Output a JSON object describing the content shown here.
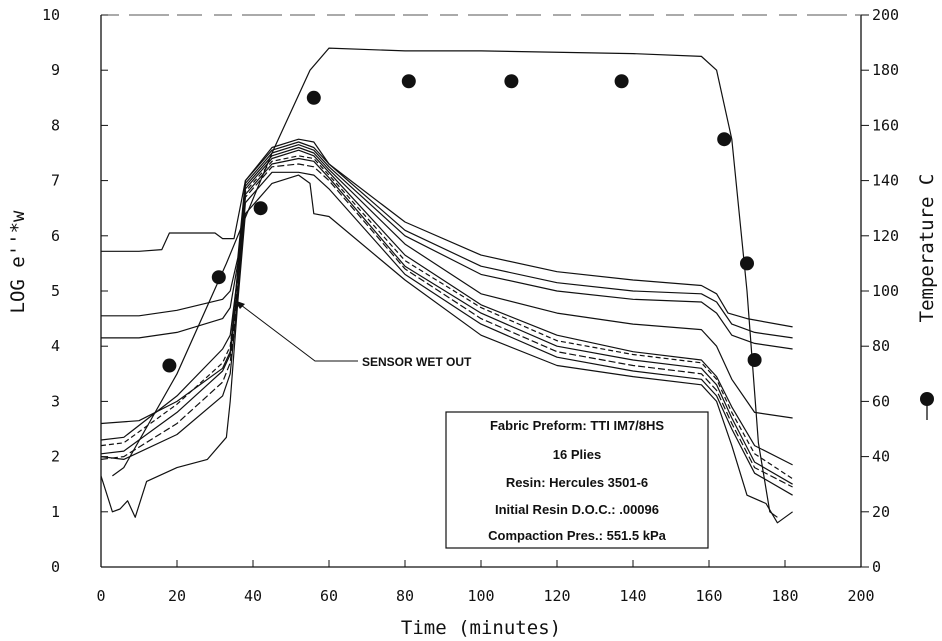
{
  "chart_data": {
    "type": "line",
    "xlabel": "Time (minutes)",
    "ylabel_left": "LOG e''*w",
    "ylabel_right": "Temperature C",
    "xlim": [
      0,
      200
    ],
    "ylim_left": [
      0,
      10
    ],
    "ylim_right": [
      0,
      200
    ],
    "x_ticks": [
      "0",
      "20",
      "40",
      "60",
      "80",
      "100",
      "120",
      "140",
      "160",
      "180",
      "200"
    ],
    "y_left_ticks": [
      "0",
      "1",
      "2",
      "3",
      "4",
      "5",
      "6",
      "7",
      "8",
      "9",
      "10"
    ],
    "y_right_ticks": [
      "0",
      "20",
      "40",
      "60",
      "80",
      "100",
      "120",
      "140",
      "160",
      "180",
      "200"
    ],
    "grid": false,
    "annotation": "SENSOR WET OUT",
    "info_box": [
      "Fabric Preform: TTI IM7/8HS",
      "16 Plies",
      "Resin: Hercules 3501-6",
      "Initial Resin D.O.C.: .00096",
      "Compaction Pres.: 551.5 kPa"
    ],
    "temperature": {
      "line": [
        [
          3,
          33
        ],
        [
          6,
          36
        ],
        [
          20,
          70
        ],
        [
          33,
          110
        ],
        [
          45,
          150
        ],
        [
          55,
          180
        ],
        [
          60,
          188
        ],
        [
          80,
          187
        ],
        [
          100,
          187
        ],
        [
          140,
          186
        ],
        [
          158,
          185
        ],
        [
          162,
          180
        ],
        [
          166,
          155
        ],
        [
          170,
          100
        ],
        [
          173,
          45
        ],
        [
          176,
          20
        ],
        [
          178,
          18
        ]
      ],
      "markers": [
        [
          18,
          73
        ],
        [
          31,
          105
        ],
        [
          42,
          130
        ],
        [
          56,
          170
        ],
        [
          81,
          176
        ],
        [
          108,
          176
        ],
        [
          137,
          176
        ],
        [
          164,
          155
        ],
        [
          170,
          110
        ],
        [
          172,
          75
        ]
      ]
    },
    "series": [
      {
        "values": [
          [
            0,
            5.72
          ],
          [
            10,
            5.72
          ],
          [
            16,
            5.75
          ],
          [
            18,
            6.05
          ],
          [
            30,
            6.05
          ],
          [
            32,
            5.95
          ],
          [
            35,
            5.95
          ],
          [
            38,
            7.0
          ],
          [
            45,
            7.6
          ],
          [
            52,
            7.75
          ],
          [
            56,
            7.7
          ],
          [
            60,
            7.3
          ],
          [
            80,
            6.25
          ],
          [
            100,
            5.65
          ],
          [
            120,
            5.35
          ],
          [
            140,
            5.2
          ],
          [
            158,
            5.1
          ],
          [
            162,
            4.95
          ],
          [
            165,
            4.6
          ],
          [
            170,
            4.5
          ],
          [
            182,
            4.35
          ]
        ]
      },
      {
        "values": [
          [
            0,
            4.55
          ],
          [
            10,
            4.55
          ],
          [
            20,
            4.65
          ],
          [
            32,
            4.85
          ],
          [
            34,
            5.0
          ],
          [
            36,
            5.6
          ],
          [
            38,
            7.0
          ],
          [
            45,
            7.55
          ],
          [
            52,
            7.7
          ],
          [
            56,
            7.6
          ],
          [
            60,
            7.3
          ],
          [
            80,
            6.1
          ],
          [
            100,
            5.45
          ],
          [
            120,
            5.15
          ],
          [
            140,
            5.0
          ],
          [
            158,
            4.95
          ],
          [
            162,
            4.8
          ],
          [
            166,
            4.4
          ],
          [
            172,
            4.25
          ],
          [
            182,
            4.15
          ]
        ]
      },
      {
        "values": [
          [
            0,
            4.15
          ],
          [
            10,
            4.15
          ],
          [
            20,
            4.25
          ],
          [
            32,
            4.5
          ],
          [
            34,
            4.7
          ],
          [
            36,
            5.5
          ],
          [
            38,
            6.95
          ],
          [
            45,
            7.5
          ],
          [
            52,
            7.65
          ],
          [
            56,
            7.55
          ],
          [
            60,
            7.25
          ],
          [
            80,
            6.0
          ],
          [
            100,
            5.3
          ],
          [
            120,
            5.0
          ],
          [
            140,
            4.85
          ],
          [
            158,
            4.8
          ],
          [
            162,
            4.6
          ],
          [
            166,
            4.2
          ],
          [
            172,
            4.05
          ],
          [
            182,
            3.95
          ]
        ]
      },
      {
        "values": [
          [
            0,
            2.6
          ],
          [
            10,
            2.65
          ],
          [
            20,
            3.0
          ],
          [
            32,
            3.6
          ],
          [
            34,
            3.9
          ],
          [
            36,
            5.4
          ],
          [
            38,
            6.9
          ],
          [
            45,
            7.45
          ],
          [
            52,
            7.6
          ],
          [
            56,
            7.5
          ],
          [
            60,
            7.2
          ],
          [
            80,
            5.85
          ],
          [
            100,
            4.95
          ],
          [
            120,
            4.6
          ],
          [
            140,
            4.4
          ],
          [
            158,
            4.3
          ],
          [
            162,
            4.0
          ],
          [
            166,
            3.4
          ],
          [
            172,
            2.8
          ],
          [
            182,
            2.7
          ]
        ]
      },
      {
        "values": [
          [
            0,
            2.3
          ],
          [
            6,
            2.35
          ],
          [
            20,
            3.1
          ],
          [
            32,
            3.95
          ],
          [
            34,
            4.2
          ],
          [
            36,
            5.3
          ],
          [
            38,
            6.85
          ],
          [
            45,
            7.4
          ],
          [
            52,
            7.55
          ],
          [
            56,
            7.45
          ],
          [
            60,
            7.15
          ],
          [
            80,
            5.65
          ],
          [
            100,
            4.75
          ],
          [
            120,
            4.2
          ],
          [
            140,
            3.9
          ],
          [
            158,
            3.75
          ],
          [
            162,
            3.45
          ],
          [
            166,
            2.9
          ],
          [
            172,
            2.2
          ],
          [
            182,
            1.85
          ]
        ]
      },
      {
        "values": [
          [
            0,
            2.2
          ],
          [
            6,
            2.25
          ],
          [
            20,
            2.95
          ],
          [
            32,
            3.7
          ],
          [
            34,
            4.0
          ],
          [
            36,
            5.2
          ],
          [
            38,
            6.8
          ],
          [
            45,
            7.35
          ],
          [
            52,
            7.45
          ],
          [
            56,
            7.4
          ],
          [
            60,
            7.1
          ],
          [
            80,
            5.55
          ],
          [
            100,
            4.7
          ],
          [
            120,
            4.1
          ],
          [
            140,
            3.85
          ],
          [
            158,
            3.7
          ],
          [
            162,
            3.4
          ],
          [
            166,
            2.8
          ],
          [
            172,
            2.05
          ],
          [
            182,
            1.6
          ]
        ]
      },
      {
        "values": [
          [
            0,
            2.05
          ],
          [
            6,
            2.1
          ],
          [
            20,
            2.8
          ],
          [
            32,
            3.55
          ],
          [
            34,
            3.85
          ],
          [
            36,
            5.1
          ],
          [
            38,
            6.75
          ],
          [
            45,
            7.3
          ],
          [
            52,
            7.4
          ],
          [
            56,
            7.35
          ],
          [
            60,
            7.05
          ],
          [
            80,
            5.45
          ],
          [
            100,
            4.6
          ],
          [
            120,
            4.0
          ],
          [
            140,
            3.75
          ],
          [
            158,
            3.6
          ],
          [
            162,
            3.3
          ],
          [
            166,
            2.7
          ],
          [
            172,
            1.9
          ],
          [
            182,
            1.5
          ]
        ]
      },
      {
        "values": [
          [
            0,
            1.95
          ],
          [
            6,
            2.0
          ],
          [
            20,
            2.6
          ],
          [
            32,
            3.35
          ],
          [
            34,
            3.7
          ],
          [
            36,
            5.0
          ],
          [
            38,
            6.7
          ],
          [
            45,
            7.25
          ],
          [
            52,
            7.3
          ],
          [
            56,
            7.25
          ],
          [
            60,
            7.0
          ],
          [
            80,
            5.4
          ],
          [
            100,
            4.5
          ],
          [
            120,
            3.9
          ],
          [
            140,
            3.65
          ],
          [
            158,
            3.5
          ],
          [
            162,
            3.2
          ],
          [
            166,
            2.6
          ],
          [
            172,
            1.8
          ],
          [
            182,
            1.45
          ]
        ]
      },
      {
        "values": [
          [
            0,
            2.0
          ],
          [
            6,
            1.95
          ],
          [
            20,
            2.4
          ],
          [
            32,
            3.1
          ],
          [
            34,
            3.5
          ],
          [
            36,
            4.9
          ],
          [
            38,
            6.6
          ],
          [
            45,
            7.15
          ],
          [
            52,
            7.15
          ],
          [
            56,
            7.1
          ],
          [
            60,
            6.85
          ],
          [
            80,
            5.3
          ],
          [
            100,
            4.4
          ],
          [
            120,
            3.8
          ],
          [
            140,
            3.55
          ],
          [
            158,
            3.4
          ],
          [
            162,
            3.1
          ],
          [
            166,
            2.5
          ],
          [
            172,
            1.7
          ],
          [
            182,
            1.3
          ]
        ]
      },
      {
        "values": [
          [
            0,
            1.65
          ],
          [
            3,
            1.0
          ],
          [
            5,
            1.05
          ],
          [
            7,
            1.2
          ],
          [
            9,
            0.9
          ],
          [
            12,
            1.55
          ],
          [
            20,
            1.8
          ],
          [
            28,
            1.95
          ],
          [
            33,
            2.35
          ],
          [
            34,
            3.0
          ],
          [
            36,
            4.8
          ],
          [
            38,
            6.4
          ],
          [
            45,
            6.95
          ],
          [
            52,
            7.1
          ],
          [
            55,
            6.95
          ],
          [
            56,
            6.4
          ],
          [
            60,
            6.35
          ],
          [
            80,
            5.2
          ],
          [
            100,
            4.2
          ],
          [
            120,
            3.65
          ],
          [
            140,
            3.45
          ],
          [
            158,
            3.3
          ],
          [
            162,
            3.0
          ],
          [
            166,
            2.2
          ],
          [
            170,
            1.3
          ],
          [
            175,
            1.15
          ],
          [
            178,
            0.8
          ],
          [
            182,
            1.0
          ]
        ]
      }
    ]
  }
}
